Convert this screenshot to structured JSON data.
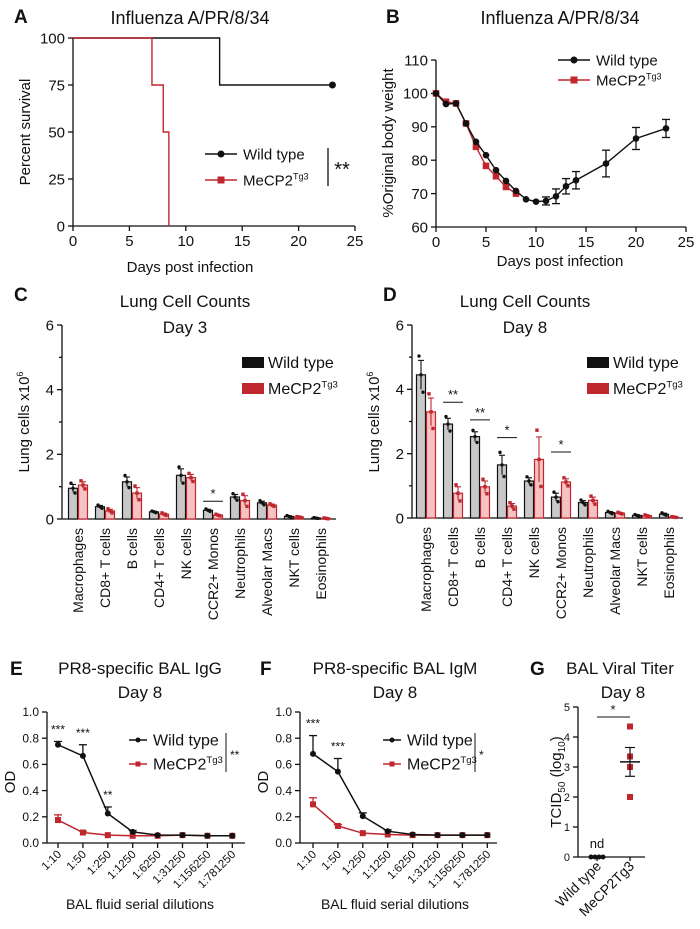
{
  "colors": {
    "wild_type": "#111111",
    "mecp2": "#c0262d",
    "wt_bar_fill": "#c8c8c8",
    "mecp2_bar_fill": "#f5c3c3"
  },
  "legend": {
    "wild_type": "Wild type",
    "mecp2": "MeCP2",
    "mecp2_sup": "Tg3"
  },
  "chart_data": [
    {
      "panel": "A",
      "type": "line",
      "title": "Influenza A/PR/8/34",
      "xlabel": "Days post infection",
      "ylabel": "Percent survival",
      "xlim": [
        0,
        25
      ],
      "ylim": [
        0,
        100
      ],
      "xticks": [
        "0",
        "5",
        "10",
        "15",
        "20",
        "25"
      ],
      "yticks": [
        "0",
        "25",
        "50",
        "75",
        "100"
      ],
      "legend_position": "center-right",
      "significance": "**",
      "series": [
        {
          "name": "Wild type",
          "step": true,
          "x": [
            0,
            13,
            13,
            23
          ],
          "y": [
            100,
            100,
            75,
            75
          ]
        },
        {
          "name": "MeCP2Tg3",
          "step": true,
          "x": [
            0,
            7,
            7,
            8,
            8,
            8.5,
            8.5
          ],
          "y": [
            100,
            100,
            75,
            75,
            50,
            50,
            0
          ]
        }
      ]
    },
    {
      "panel": "B",
      "type": "line",
      "title": "Influenza A/PR/8/34",
      "xlabel": "Days post infection",
      "ylabel": "%Original body weight",
      "xlim": [
        0,
        25
      ],
      "ylim": [
        60,
        110
      ],
      "xticks": [
        "0",
        "5",
        "10",
        "15",
        "20",
        "25"
      ],
      "yticks": [
        "60",
        "70",
        "80",
        "90",
        "100",
        "110"
      ],
      "legend_position": "top-right",
      "series": [
        {
          "name": "Wild type",
          "x": [
            0,
            1,
            2,
            3,
            4,
            5,
            6,
            7,
            8,
            9,
            10,
            11,
            12,
            13,
            14,
            17,
            20,
            23
          ],
          "y": [
            100,
            96.8,
            97,
            91,
            85.5,
            81.5,
            77,
            73.8,
            70.8,
            68.3,
            67.6,
            67.8,
            69.2,
            72.2,
            74,
            79,
            86.5,
            89.5
          ],
          "err": [
            0,
            0,
            0,
            0,
            0,
            0,
            0,
            0,
            0,
            0,
            0,
            1.2,
            2.2,
            2.3,
            2.6,
            4,
            3.3,
            2.7
          ]
        },
        {
          "name": "MeCP2Tg3",
          "x": [
            0,
            1,
            2,
            3,
            4,
            5,
            6,
            7,
            8
          ],
          "y": [
            100,
            97.5,
            97,
            91,
            84,
            78.3,
            75.2,
            72,
            70
          ],
          "err": [
            0,
            0,
            0,
            0,
            0,
            0,
            0,
            0,
            0
          ]
        }
      ]
    },
    {
      "panel": "C",
      "type": "bar",
      "title": "Lung Cell Counts",
      "subtitle": "Day 3",
      "ylabel": "Lung cells x10",
      "ylabel_sup": "6",
      "ylim": [
        0,
        6
      ],
      "yticks": [
        "0",
        "2",
        "4",
        "6"
      ],
      "legend_position": "top-right",
      "categories": [
        "Macrophages",
        "CD8+ T cells",
        "B cells",
        "CD4+ T cells",
        "NK cells",
        "CCR2+ Monos",
        "Neutrophils",
        "Alveolar Macs",
        "NKT cells",
        "Eosinophils"
      ],
      "series": [
        {
          "name": "Wild type",
          "values": [
            0.95,
            0.38,
            1.15,
            0.22,
            1.35,
            0.27,
            0.68,
            0.5,
            0.08,
            0.03
          ],
          "err": [
            0.12,
            0.04,
            0.15,
            0.02,
            0.2,
            0.03,
            0.08,
            0.05,
            0.02,
            0.01
          ]
        },
        {
          "name": "MeCP2Tg3",
          "values": [
            1.05,
            0.25,
            0.8,
            0.15,
            1.28,
            0.12,
            0.57,
            0.43,
            0.06,
            0.02
          ],
          "err": [
            0.1,
            0.05,
            0.17,
            0.03,
            0.1,
            0.02,
            0.15,
            0.03,
            0.01,
            0.01
          ]
        }
      ],
      "significance": [
        {
          "category": "CCR2+ Monos",
          "label": "*",
          "y": 0.55
        }
      ]
    },
    {
      "panel": "D",
      "type": "bar",
      "title": "Lung Cell Counts",
      "subtitle": "Day 8",
      "ylabel": "Lung cells x10",
      "ylabel_sup": "6",
      "ylim": [
        0,
        6
      ],
      "yticks": [
        "0",
        "2",
        "4",
        "6"
      ],
      "legend_position": "top-right",
      "categories": [
        "Macrophages",
        "CD8+ T cells",
        "B cells",
        "CD4+ T cells",
        "NK cells",
        "CCR2+ Monos",
        "Neutrophils",
        "Alveolar Macs",
        "NKT cells",
        "Eosinophils"
      ],
      "series": [
        {
          "name": "Wild type",
          "values": [
            4.45,
            2.92,
            2.53,
            1.65,
            1.15,
            0.65,
            0.48,
            0.17,
            0.08,
            0.12
          ],
          "err": [
            0.45,
            0.18,
            0.15,
            0.3,
            0.1,
            0.12,
            0.06,
            0.03,
            0.02,
            0.03
          ]
        },
        {
          "name": "MeCP2Tg3",
          "values": [
            3.3,
            0.77,
            0.97,
            0.37,
            1.82,
            1.12,
            0.55,
            0.15,
            0.07,
            0.03
          ],
          "err": [
            0.43,
            0.2,
            0.18,
            0.08,
            0.7,
            0.1,
            0.1,
            0.02,
            0.02,
            0.01
          ]
        }
      ],
      "significance": [
        {
          "category": "CD8+ T cells",
          "label": "**",
          "y": 3.6
        },
        {
          "category": "B cells",
          "label": "**",
          "y": 3.05
        },
        {
          "category": "CD4+ T cells",
          "label": "*",
          "y": 2.5
        },
        {
          "category": "CCR2+ Monos",
          "label": "*",
          "y": 2.05
        }
      ]
    },
    {
      "panel": "E",
      "type": "line",
      "title": "PR8-specific BAL IgG",
      "subtitle": "Day 8",
      "xlabel": "BAL fluid serial dilutions",
      "ylabel": "OD",
      "ylim": [
        0,
        1
      ],
      "yticks": [
        "0.0",
        "0.2",
        "0.4",
        "0.6",
        "0.8",
        "1.0"
      ],
      "categories": [
        "1:10",
        "1:50",
        "1:250",
        "1:1250",
        "1:6250",
        "1:31250",
        "1:156250",
        "1:781250"
      ],
      "legend_position": "top-right",
      "significance": "**",
      "point_significance": [
        "***",
        "***",
        "**"
      ],
      "series": [
        {
          "name": "Wild type",
          "values": [
            0.75,
            0.665,
            0.225,
            0.085,
            0.06,
            0.06,
            0.055,
            0.055
          ],
          "err": [
            0.025,
            0.085,
            0.05,
            0.01,
            0,
            0,
            0,
            0
          ]
        },
        {
          "name": "MeCP2Tg3",
          "values": [
            0.175,
            0.08,
            0.06,
            0.055,
            0.055,
            0.06,
            0.055,
            0.055
          ],
          "err": [
            0.04,
            0.01,
            0,
            0,
            0,
            0,
            0,
            0
          ]
        }
      ]
    },
    {
      "panel": "F",
      "type": "line",
      "title": "PR8-specific BAL IgM",
      "subtitle": "Day 8",
      "xlabel": "BAL fluid serial dilutions",
      "ylabel": "OD",
      "ylim": [
        0,
        1
      ],
      "yticks": [
        "0.0",
        "0.2",
        "0.4",
        "0.6",
        "0.8",
        "1.0"
      ],
      "categories": [
        "1:10",
        "1:50",
        "1:250",
        "1:1250",
        "1:6250",
        "1:31250",
        "1:156250",
        "1:781250"
      ],
      "legend_position": "top-right",
      "significance": "*",
      "point_significance": [
        "***",
        "***"
      ],
      "series": [
        {
          "name": "Wild type",
          "values": [
            0.68,
            0.545,
            0.205,
            0.09,
            0.065,
            0.06,
            0.06,
            0.06
          ],
          "err": [
            0.14,
            0.1,
            0.025,
            0.01,
            0,
            0,
            0,
            0
          ]
        },
        {
          "name": "MeCP2Tg3",
          "values": [
            0.295,
            0.13,
            0.075,
            0.065,
            0.06,
            0.06,
            0.06,
            0.06
          ],
          "err": [
            0.05,
            0.01,
            0,
            0,
            0,
            0,
            0,
            0
          ]
        }
      ]
    },
    {
      "panel": "G",
      "type": "scatter",
      "title": "BAL Viral Titer",
      "subtitle": "Day 8",
      "ylabel_parts": [
        "TCID",
        "50",
        " (log",
        "10",
        ")"
      ],
      "ylim": [
        0,
        5
      ],
      "yticks": [
        "0",
        "1",
        "2",
        "3",
        "4",
        "5"
      ],
      "categories": [
        "Wild type",
        "MeCP2Tg3"
      ],
      "series": [
        {
          "name": "Wild type",
          "values": [
            0,
            0,
            0,
            0
          ],
          "annotation": "nd"
        },
        {
          "name": "MeCP2Tg3",
          "values": [
            4.35,
            3.35,
            3.0,
            2.0
          ],
          "mean": 3.17,
          "sem": 0.48
        }
      ],
      "significance": "*"
    }
  ]
}
